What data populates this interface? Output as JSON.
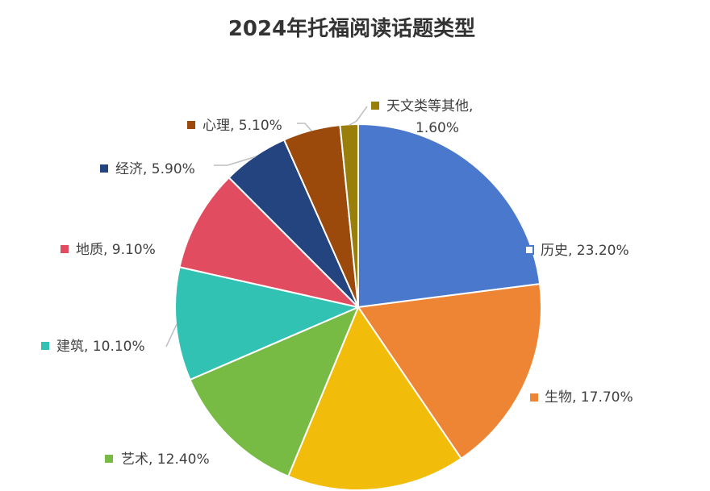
{
  "chart_data": {
    "type": "pie",
    "title": "2024年托福阅读话题类型",
    "slices": [
      {
        "name": "历史",
        "value": 23.2,
        "label": "历史, 23.20%",
        "color": "#4a78cd"
      },
      {
        "name": "生物",
        "value": 17.7,
        "label": "生物, 17.70%",
        "color": "#ee8535"
      },
      {
        "name": "",
        "value": 15.9,
        "label": "",
        "color": "#f2bc0a"
      },
      {
        "name": "艺术",
        "value": 12.4,
        "label": "艺术, 12.40%",
        "color": "#77bb44"
      },
      {
        "name": "建筑",
        "value": 10.1,
        "label": "建筑, 10.10%",
        "color": "#31c2b4"
      },
      {
        "name": "地质",
        "value": 9.1,
        "label": "地质, 9.10%",
        "color": "#e24c60"
      },
      {
        "name": "经济",
        "value": 5.9,
        "label": "经济, 5.90%",
        "color": "#23447f"
      },
      {
        "name": "心理",
        "value": 5.1,
        "label": "心理, 5.10%",
        "color": "#9b4a0c"
      },
      {
        "name": "天文类等其他",
        "value": 1.6,
        "label_line1": "天文类等其他,",
        "label_line2": "1.60%",
        "color": "#9a7e0a"
      }
    ],
    "legend": "none",
    "data_labels": "outside"
  }
}
